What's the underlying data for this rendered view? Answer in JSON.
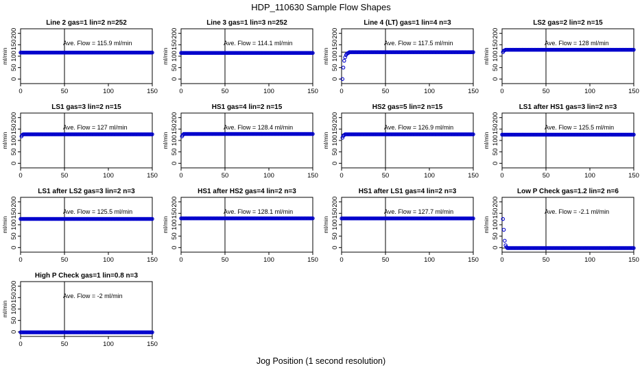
{
  "figure": {
    "title": "HDP_110630  Sample Flow Shapes",
    "xlabel": "Jog Position (1 second resolution)",
    "marker_color": "#0000cc",
    "line_color": "#000000"
  },
  "chart_data": [
    {
      "type": "scatter",
      "title": "Line 2 gas=1 lin=2 n=252",
      "ylabel": "ml/min",
      "annotation": "Ave. Flow =  115.9  ml/min",
      "xlim": [
        0,
        150
      ],
      "ylim": [
        -20,
        220
      ],
      "xticks": [
        0,
        50,
        100,
        150
      ],
      "yticks": [
        0,
        50,
        100,
        150,
        200
      ],
      "vline_x": 50,
      "hline_y": 115.9,
      "x_range": [
        0,
        150
      ],
      "level": 115.9,
      "startup": []
    },
    {
      "type": "scatter",
      "title": "Line 3 gas=1 lin=3 n=252",
      "ylabel": "ml/min",
      "annotation": "Ave. Flow =  114.1  ml/min",
      "xlim": [
        0,
        150
      ],
      "ylim": [
        -20,
        220
      ],
      "xticks": [
        0,
        50,
        100,
        150
      ],
      "yticks": [
        0,
        50,
        100,
        150,
        200
      ],
      "vline_x": 50,
      "hline_y": 114.1,
      "x_range": [
        0,
        150
      ],
      "level": 114.1,
      "startup": []
    },
    {
      "type": "scatter",
      "title": "Line 4 (LT) gas=1 lin=4 n=3",
      "ylabel": "ml/min",
      "annotation": "Ave. Flow =  117.5  ml/min",
      "xlim": [
        0,
        150
      ],
      "ylim": [
        -20,
        220
      ],
      "xticks": [
        0,
        50,
        100,
        150
      ],
      "yticks": [
        0,
        50,
        100,
        150,
        200
      ],
      "vline_x": 50,
      "hline_y": 117.5,
      "x_range": [
        0,
        150
      ],
      "level": 117.5,
      "startup": [
        [
          1,
          0
        ],
        [
          2,
          50
        ],
        [
          3,
          80
        ],
        [
          4,
          95
        ],
        [
          5,
          105
        ],
        [
          6,
          110
        ],
        [
          7,
          113
        ],
        [
          8,
          115
        ]
      ]
    },
    {
      "type": "scatter",
      "title": "LS2 gas=2 lin=2 n=15",
      "ylabel": "ml/min",
      "annotation": "Ave. Flow =  128  ml/min",
      "xlim": [
        0,
        150
      ],
      "ylim": [
        -20,
        220
      ],
      "xticks": [
        0,
        50,
        100,
        150
      ],
      "yticks": [
        0,
        50,
        100,
        150,
        200
      ],
      "vline_x": 50,
      "hline_y": 128,
      "x_range": [
        0,
        150
      ],
      "level": 128,
      "startup": [
        [
          1,
          118
        ],
        [
          2,
          124
        ],
        [
          3,
          126
        ]
      ]
    },
    {
      "type": "scatter",
      "title": "LS1 gas=3 lin=2 n=15",
      "ylabel": "ml/min",
      "annotation": "Ave. Flow =  127  ml/min",
      "xlim": [
        0,
        150
      ],
      "ylim": [
        -20,
        220
      ],
      "xticks": [
        0,
        50,
        100,
        150
      ],
      "yticks": [
        0,
        50,
        100,
        150,
        200
      ],
      "vline_x": 50,
      "hline_y": 127,
      "x_range": [
        0,
        150
      ],
      "level": 127,
      "startup": [
        [
          1,
          118
        ],
        [
          2,
          124
        ]
      ]
    },
    {
      "type": "scatter",
      "title": "HS1 gas=4 lin=2 n=15",
      "ylabel": "ml/min",
      "annotation": "Ave. Flow =  128.4  ml/min",
      "xlim": [
        0,
        150
      ],
      "ylim": [
        -20,
        220
      ],
      "xticks": [
        0,
        50,
        100,
        150
      ],
      "yticks": [
        0,
        50,
        100,
        150,
        200
      ],
      "vline_x": 50,
      "hline_y": 128.4,
      "x_range": [
        0,
        150
      ],
      "level": 128.4,
      "startup": [
        [
          1,
          118
        ],
        [
          2,
          124
        ]
      ]
    },
    {
      "type": "scatter",
      "title": "HS2 gas=5 lin=2 n=15",
      "ylabel": "ml/min",
      "annotation": "Ave. Flow =  126.9  ml/min",
      "xlim": [
        0,
        150
      ],
      "ylim": [
        -20,
        220
      ],
      "xticks": [
        0,
        50,
        100,
        150
      ],
      "yticks": [
        0,
        50,
        100,
        150,
        200
      ],
      "vline_x": 50,
      "hline_y": 126.9,
      "x_range": [
        0,
        150
      ],
      "level": 126.9,
      "startup": [
        [
          1,
          112
        ],
        [
          2,
          120
        ],
        [
          3,
          124
        ]
      ]
    },
    {
      "type": "scatter",
      "title": "LS1 after HS1 gas=3 lin=2 n=3",
      "ylabel": "ml/min",
      "annotation": "Ave. Flow =  125.5  ml/min",
      "xlim": [
        0,
        150
      ],
      "ylim": [
        -20,
        220
      ],
      "xticks": [
        0,
        50,
        100,
        150
      ],
      "yticks": [
        0,
        50,
        100,
        150,
        200
      ],
      "vline_x": 50,
      "hline_y": 125.5,
      "x_range": [
        0,
        150
      ],
      "level": 125.5,
      "startup": []
    },
    {
      "type": "scatter",
      "title": "LS1 after LS2 gas=3 lin=2 n=3",
      "ylabel": "ml/min",
      "annotation": "Ave. Flow =  125.5  ml/min",
      "xlim": [
        0,
        150
      ],
      "ylim": [
        -20,
        220
      ],
      "xticks": [
        0,
        50,
        100,
        150
      ],
      "yticks": [
        0,
        50,
        100,
        150,
        200
      ],
      "vline_x": 50,
      "hline_y": 125.5,
      "x_range": [
        0,
        150
      ],
      "level": 125.5,
      "startup": []
    },
    {
      "type": "scatter",
      "title": "HS1 after HS2 gas=4 lin=2 n=3",
      "ylabel": "ml/min",
      "annotation": "Ave. Flow =  128.1  ml/min",
      "xlim": [
        0,
        150
      ],
      "ylim": [
        -20,
        220
      ],
      "xticks": [
        0,
        50,
        100,
        150
      ],
      "yticks": [
        0,
        50,
        100,
        150,
        200
      ],
      "vline_x": 50,
      "hline_y": 128.1,
      "x_range": [
        0,
        150
      ],
      "level": 128.1,
      "startup": []
    },
    {
      "type": "scatter",
      "title": "HS1 after LS1 gas=4 lin=2 n=3",
      "ylabel": "ml/min",
      "annotation": "Ave. Flow =  127.7  ml/min",
      "xlim": [
        0,
        150
      ],
      "ylim": [
        -20,
        220
      ],
      "xticks": [
        0,
        50,
        100,
        150
      ],
      "yticks": [
        0,
        50,
        100,
        150,
        200
      ],
      "vline_x": 50,
      "hline_y": 127.7,
      "x_range": [
        0,
        150
      ],
      "level": 127.7,
      "startup": []
    },
    {
      "type": "scatter",
      "title": "Low P Check gas=1.2 lin=2 n=6",
      "ylabel": "ml/min",
      "annotation": "Ave. Flow =  -2.1  ml/min",
      "xlim": [
        0,
        150
      ],
      "ylim": [
        -20,
        220
      ],
      "xticks": [
        0,
        50,
        100,
        150
      ],
      "yticks": [
        0,
        50,
        100,
        150,
        200
      ],
      "vline_x": 50,
      "hline_y": -2.1,
      "x_range": [
        0,
        150
      ],
      "level": -2.1,
      "startup": [
        [
          1,
          125
        ],
        [
          2,
          78
        ],
        [
          3,
          30
        ],
        [
          4,
          10
        ],
        [
          5,
          2
        ]
      ]
    },
    {
      "type": "scatter",
      "title": "High P Check gas=1 lin=0.8 n=3",
      "ylabel": "ml/min",
      "annotation": "Ave. Flow =  -2  ml/min",
      "xlim": [
        0,
        150
      ],
      "ylim": [
        -20,
        220
      ],
      "xticks": [
        0,
        50,
        100,
        150
      ],
      "yticks": [
        0,
        50,
        100,
        150,
        200
      ],
      "vline_x": 50,
      "hline_y": -2,
      "x_range": [
        0,
        150
      ],
      "level": -2,
      "startup": []
    }
  ]
}
